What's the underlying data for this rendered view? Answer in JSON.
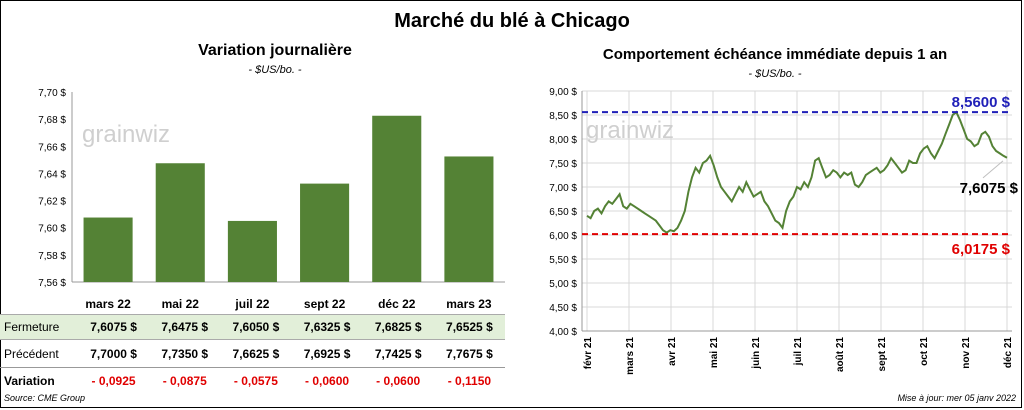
{
  "title": "Marché du blé à Chicago",
  "source": "Source: CME Group",
  "updated": "Mise à jour: mer 05 janv 2022",
  "logo_text": "grainwiz",
  "colors": {
    "bar": "#548235",
    "line": "#548235",
    "high": "#1f1fb8",
    "low": "#e00000",
    "table_highlight": "#e2efd9"
  },
  "chart_data": [
    {
      "type": "bar",
      "title": "Variation journalière",
      "subtitle": "- $US/bo. -",
      "categories": [
        "mars 22",
        "mai 22",
        "juil 22",
        "sept 22",
        "déc 22",
        "mars 23"
      ],
      "values": [
        7.6075,
        7.6475,
        7.605,
        7.6325,
        7.6825,
        7.6525
      ],
      "ylim": [
        7.56,
        7.7
      ],
      "ytick_labels": [
        "7,56 $",
        "7,58 $",
        "7,60 $",
        "7,62 $",
        "7,64 $",
        "7,66 $",
        "7,68 $",
        "7,70 $"
      ],
      "grid": false
    },
    {
      "type": "line",
      "title": "Comportement  échéance immédiate depuis 1 an",
      "subtitle": "- $US/bo. -",
      "ylim": [
        4.0,
        9.0
      ],
      "ytick_labels": [
        "4,00 $",
        "4,50 $",
        "5,00 $",
        "5,50 $",
        "6,00 $",
        "6,50 $",
        "7,00 $",
        "7,50 $",
        "8,00 $",
        "8,50 $",
        "9,00 $"
      ],
      "xtick_labels": [
        "févr 21",
        "mars 21",
        "avr 21",
        "mai 21",
        "juin 21",
        "juil 21",
        "août 21",
        "sept 21",
        "oct 21",
        "nov 21",
        "déc 21"
      ],
      "high": {
        "value": 8.56,
        "label": "8,5600 $"
      },
      "low": {
        "value": 6.0175,
        "label": "6,0175 $"
      },
      "last": {
        "value": 7.6075,
        "label": "7,6075 $"
      },
      "grid": true,
      "series": [
        {
          "values": [
            6.4,
            6.35,
            6.5,
            6.55,
            6.45,
            6.6,
            6.7,
            6.65,
            6.75,
            6.85,
            6.6,
            6.55,
            6.65,
            6.6,
            6.55,
            6.5,
            6.45,
            6.4,
            6.35,
            6.3,
            6.2,
            6.1,
            6.05,
            6.1,
            6.08,
            6.15,
            6.3,
            6.5,
            6.9,
            7.2,
            7.4,
            7.3,
            7.5,
            7.55,
            7.65,
            7.45,
            7.2,
            7.0,
            6.9,
            6.8,
            6.7,
            6.85,
            7.0,
            6.9,
            7.1,
            6.95,
            6.8,
            6.85,
            6.9,
            6.7,
            6.6,
            6.45,
            6.3,
            6.25,
            6.15,
            6.5,
            6.7,
            6.8,
            7.0,
            6.95,
            7.1,
            7.0,
            7.2,
            7.55,
            7.6,
            7.4,
            7.2,
            7.25,
            7.35,
            7.3,
            7.2,
            7.3,
            7.25,
            7.3,
            7.05,
            7.0,
            7.1,
            7.25,
            7.3,
            7.35,
            7.4,
            7.3,
            7.35,
            7.45,
            7.6,
            7.5,
            7.4,
            7.3,
            7.35,
            7.55,
            7.5,
            7.5,
            7.7,
            7.8,
            7.85,
            7.7,
            7.6,
            7.75,
            7.9,
            8.1,
            8.3,
            8.5,
            8.56,
            8.4,
            8.2,
            8.0,
            7.95,
            7.85,
            7.9,
            8.1,
            8.15,
            8.05,
            7.85,
            7.75,
            7.7,
            7.65,
            7.6075
          ]
        }
      ]
    }
  ],
  "table": {
    "close_label": "Fermeture",
    "prev_label": "Précédent",
    "var_label": "Variation",
    "close": [
      "7,6075  $",
      "7,6475  $",
      "7,6050  $",
      "7,6325  $",
      "7,6825  $",
      "7,6525  $"
    ],
    "prev": [
      "7,7000  $",
      "7,7350  $",
      "7,6625  $",
      "7,6925  $",
      "7,7425  $",
      "7,7675  $"
    ],
    "var": [
      "- 0,0925",
      "- 0,0875",
      "- 0,0575",
      "- 0,0600",
      "- 0,0600",
      "- 0,1150"
    ]
  }
}
